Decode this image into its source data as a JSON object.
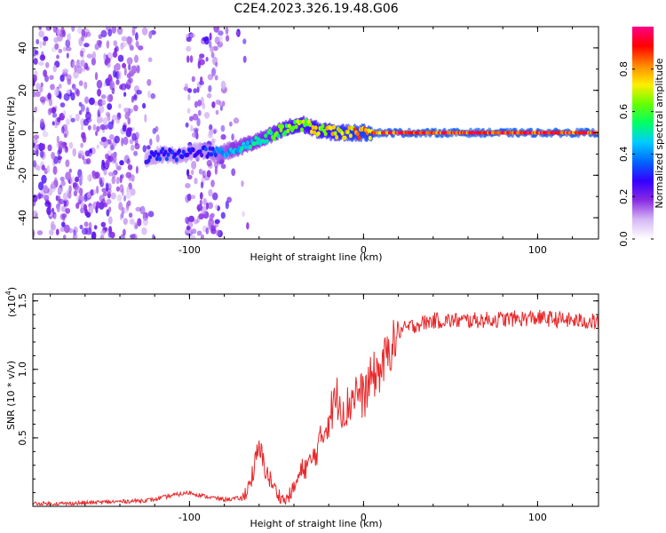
{
  "title": "C2E4.2023.326.19.48.G06",
  "chart_data": [
    {
      "type": "heatmap",
      "xlabel": "Height of straight line (km)",
      "ylabel": "Frequency (Hz)",
      "xlim": [
        -190,
        135
      ],
      "ylim": [
        -50,
        50
      ],
      "xticks": [
        "-100",
        "0",
        "100"
      ],
      "yticks": [
        "-40",
        "-20",
        "0",
        "20",
        "40"
      ],
      "colorbar": {
        "label": "Normalized spectral amplitude",
        "range": [
          0,
          1
        ],
        "ticks": [
          "0.0",
          "0.2",
          "0.4",
          "0.6",
          "0.8"
        ],
        "colors": [
          "#ffffff",
          "#d6b8f5",
          "#8a2be2",
          "#3300ff",
          "#0066ff",
          "#00ccff",
          "#00ff66",
          "#66ff00",
          "#ffee00",
          "#ff8800",
          "#ff0000",
          "#ff0088"
        ]
      },
      "ridge": {
        "x": [
          -125,
          -115,
          -105,
          -95,
          -85,
          -75,
          -65,
          -55,
          -45,
          -35,
          -25,
          -15,
          -5,
          5,
          20,
          40,
          60,
          80,
          100,
          120,
          135
        ],
        "y": [
          -12,
          -10,
          -11,
          -8,
          -10,
          -8,
          -5,
          -2,
          2,
          4,
          1,
          0,
          0,
          0,
          0,
          0,
          0,
          0,
          0,
          0,
          0
        ],
        "amplitude": [
          0.3,
          0.35,
          0.35,
          0.3,
          0.4,
          0.5,
          0.55,
          0.6,
          0.7,
          0.75,
          0.8,
          0.85,
          0.9,
          0.95,
          1,
          1,
          1,
          1,
          1,
          1,
          1
        ]
      }
    },
    {
      "type": "line",
      "xlabel": "Height of straight line (km)",
      "ylabel": "SNR (10 * v/v)",
      "yscale_label": "(x10",
      "yscale_exp": "4",
      "xlim": [
        -190,
        135
      ],
      "ylim": [
        0,
        1.55
      ],
      "xticks": [
        "-100",
        "0",
        "100"
      ],
      "yticks": [
        "0.5",
        "1.0",
        "1.5"
      ],
      "color": "#e8282a",
      "x": [
        -190,
        -170,
        -150,
        -130,
        -120,
        -110,
        -100,
        -90,
        -80,
        -70,
        -65,
        -60,
        -55,
        -50,
        -45,
        -40,
        -35,
        -30,
        -25,
        -20,
        -15,
        -10,
        -5,
        0,
        5,
        10,
        15,
        20,
        30,
        40,
        60,
        80,
        100,
        120,
        135
      ],
      "y": [
        0.02,
        0.02,
        0.03,
        0.04,
        0.05,
        0.08,
        0.1,
        0.07,
        0.05,
        0.06,
        0.2,
        0.45,
        0.25,
        0.12,
        0.05,
        0.15,
        0.3,
        0.35,
        0.5,
        0.7,
        0.85,
        0.75,
        0.9,
        0.85,
        1.0,
        1.05,
        1.2,
        1.3,
        1.35,
        1.38,
        1.38,
        1.39,
        1.4,
        1.38,
        1.37
      ]
    }
  ]
}
